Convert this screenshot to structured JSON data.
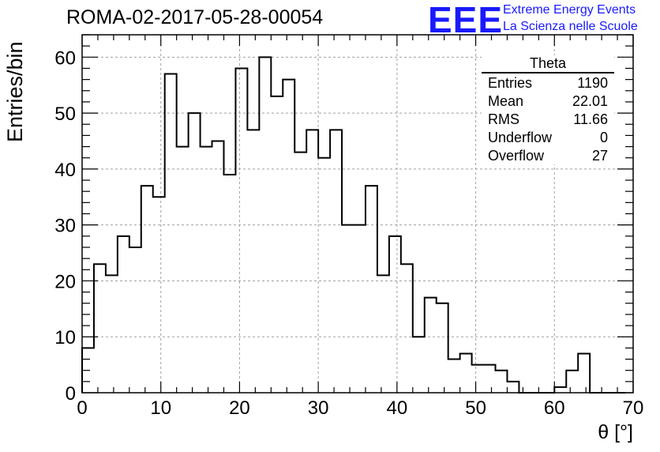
{
  "header": {
    "title": "ROMA-02-2017-05-28-00054",
    "logo_text": "EEE",
    "logo_line1": "Extreme Energy Events",
    "logo_line2": "La Scienza nelle Scuole"
  },
  "stats_box": {
    "title": "Theta",
    "rows": [
      {
        "key": "Entries",
        "value": "1190"
      },
      {
        "key": "Mean",
        "value": "22.01"
      },
      {
        "key": "RMS",
        "value": "11.66"
      },
      {
        "key": "Underflow",
        "value": "0"
      },
      {
        "key": "Overflow",
        "value": "27"
      }
    ]
  },
  "chart_data": {
    "type": "bar",
    "style": "step-histogram",
    "xlabel": "θ [°]",
    "ylabel": "Entries/bin",
    "xlim": [
      0,
      70
    ],
    "ylim": [
      0,
      64
    ],
    "grid": true,
    "bin_width": 1.5,
    "bin_edges_start": 0,
    "values": [
      8,
      23,
      21,
      28,
      26,
      37,
      35,
      57,
      44,
      50,
      44,
      45,
      39,
      58,
      47,
      60,
      53,
      56,
      43,
      47,
      42,
      47,
      30,
      30,
      37,
      21,
      28,
      23,
      10,
      17,
      16,
      6,
      7,
      5,
      5,
      4,
      2,
      0,
      0,
      0,
      1,
      4,
      7,
      0,
      0,
      0
    ],
    "x_ticks": [
      0,
      10,
      20,
      30,
      40,
      50,
      60,
      70
    ],
    "y_ticks": [
      0,
      10,
      20,
      30,
      40,
      50,
      60
    ],
    "colors": {
      "line": "#000000",
      "grid": "#a0a0a0",
      "logo": "#1a1aff"
    }
  }
}
